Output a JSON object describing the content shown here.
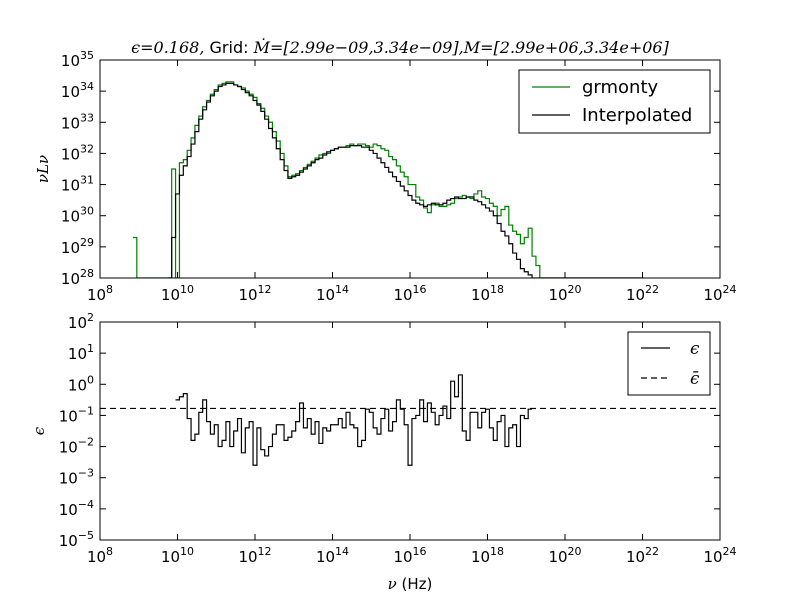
{
  "figure": {
    "title_prefix": "ϵ",
    "title_eq": "=0.168, ",
    "title_grid": "Grid: ",
    "title_mdot": "Ṁ",
    "title_mdot_range": "=[2.99e−09,3.34e−09],",
    "title_m": "M",
    "title_m_range": "=[2.99e+06,3.34e+06]"
  },
  "chart_data": [
    {
      "type": "line",
      "step": true,
      "yscale": "log",
      "xscale": "log",
      "ylabel": "νLν",
      "xlim": [
        100000000.0,
        1e+24
      ],
      "ylim": [
        1e+28,
        1e+35
      ],
      "x_tick_exponents": [
        8,
        10,
        12,
        14,
        16,
        18,
        20,
        22,
        24
      ],
      "y_tick_exponents": [
        28,
        29,
        30,
        31,
        32,
        33,
        34,
        35
      ],
      "legend_position": "top-right",
      "legend": [
        "grmonty",
        "Interpolated"
      ],
      "colors": {
        "grmonty": "#008000",
        "Interpolated": "#000000"
      },
      "series": [
        {
          "name": "grmonty",
          "x_log": [
            8.9,
            9.0,
            9.1,
            9.2,
            9.3,
            9.4,
            9.5,
            9.6,
            9.7,
            9.8,
            9.9,
            10.0,
            10.1,
            10.2,
            10.3,
            10.4,
            10.5,
            10.6,
            10.7,
            10.8,
            10.9,
            11.0,
            11.1,
            11.2,
            11.3,
            11.4,
            11.5,
            11.6,
            11.7,
            11.8,
            11.9,
            12.0,
            12.1,
            12.2,
            12.3,
            12.4,
            12.5,
            12.6,
            12.7,
            12.8,
            12.9,
            13.0,
            13.1,
            13.2,
            13.3,
            13.4,
            13.5,
            13.6,
            13.7,
            13.8,
            13.9,
            14.0,
            14.1,
            14.2,
            14.3,
            14.4,
            14.5,
            14.6,
            14.7,
            14.8,
            14.9,
            15.0,
            15.1,
            15.2,
            15.3,
            15.4,
            15.5,
            15.6,
            15.7,
            15.8,
            15.9,
            16.0,
            16.1,
            16.2,
            16.3,
            16.4,
            16.5,
            16.6,
            16.7,
            16.8,
            16.9,
            17.0,
            17.1,
            17.2,
            17.3,
            17.4,
            17.5,
            17.6,
            17.7,
            17.8,
            17.9,
            18.0,
            18.1,
            18.2,
            18.3,
            18.4,
            18.5,
            18.6,
            18.7,
            18.8,
            18.9,
            19.0,
            19.1,
            19.2,
            19.3,
            19.4,
            19.5,
            19.6,
            19.7,
            19.8,
            19.9,
            20.0,
            20.1,
            20.2,
            20.3,
            20.4,
            20.5,
            20.6,
            20.7,
            20.8,
            20.9,
            21.0,
            21.1,
            21.2,
            21.3,
            21.4,
            21.5,
            21.6,
            21.7,
            21.8,
            21.9,
            22.0
          ],
          "y_log": [
            29.3,
            28,
            28,
            28,
            28,
            28,
            28,
            28,
            28,
            28,
            31.5,
            28,
            31.7,
            31.8,
            32.1,
            32.5,
            32.9,
            33.2,
            33.5,
            33.7,
            33.9,
            34.05,
            34.2,
            34.25,
            34.3,
            34.3,
            34.2,
            34.15,
            34.1,
            34.0,
            33.9,
            33.8,
            33.6,
            33.45,
            33.2,
            33.0,
            32.7,
            32.4,
            32.0,
            31.6,
            31.25,
            31.3,
            31.35,
            31.45,
            31.55,
            31.65,
            31.75,
            31.85,
            31.95,
            32.0,
            32.0,
            32.1,
            32.15,
            32.2,
            32.2,
            32.25,
            32.3,
            32.25,
            32.3,
            32.3,
            32.25,
            32.2,
            32.3,
            32.25,
            32.15,
            32.1,
            31.9,
            31.8,
            31.6,
            31.4,
            31.25,
            31.0,
            31.0,
            30.6,
            30.5,
            30.25,
            30.1,
            30.35,
            30.4,
            30.3,
            30.3,
            30.35,
            30.4,
            30.55,
            30.6,
            30.65,
            30.6,
            30.55,
            30.7,
            30.8,
            30.6,
            30.55,
            30.4,
            30.3,
            30.0,
            30.2,
            30.3,
            29.7,
            29.5,
            29.4,
            29.1,
            29.3,
            29.6,
            28.7,
            28.4,
            28,
            28,
            28,
            28,
            28,
            28,
            28,
            28,
            28,
            28,
            28,
            28,
            28,
            28,
            28,
            28,
            28,
            28,
            28,
            28,
            28,
            28,
            28,
            28,
            28,
            28,
            28,
            28,
            28,
            28,
            28,
            28,
            28
          ]
        },
        {
          "name": "Interpolated",
          "x_log": [
            9.8,
            9.9,
            10.0,
            10.1,
            10.2,
            10.3,
            10.4,
            10.5,
            10.6,
            10.7,
            10.8,
            10.9,
            11.0,
            11.1,
            11.2,
            11.3,
            11.4,
            11.5,
            11.6,
            11.7,
            11.8,
            11.9,
            12.0,
            12.1,
            12.2,
            12.3,
            12.4,
            12.5,
            12.6,
            12.7,
            12.8,
            12.9,
            13.0,
            13.1,
            13.2,
            13.3,
            13.4,
            13.5,
            13.6,
            13.7,
            13.8,
            13.9,
            14.0,
            14.1,
            14.2,
            14.3,
            14.4,
            14.5,
            14.6,
            14.7,
            14.8,
            14.9,
            15.0,
            15.1,
            15.2,
            15.3,
            15.4,
            15.5,
            15.6,
            15.7,
            15.8,
            15.9,
            16.0,
            16.1,
            16.2,
            16.3,
            16.4,
            16.5,
            16.6,
            16.7,
            16.8,
            16.9,
            17.0,
            17.1,
            17.2,
            17.3,
            17.4,
            17.5,
            17.6,
            17.7,
            17.8,
            17.9,
            18.0,
            18.1,
            18.2,
            18.3,
            18.4,
            18.5,
            18.6,
            18.7,
            18.8,
            18.9,
            19.0,
            19.1,
            19.2,
            19.3,
            19.4,
            19.5,
            19.6,
            19.7,
            19.8,
            19.9,
            20.0,
            20.1,
            20.2,
            20.3,
            20.4,
            20.5,
            20.6,
            20.7,
            20.8,
            20.9,
            21.0,
            21.1,
            21.2,
            21.3,
            21.4,
            21.5,
            21.6,
            21.7,
            21.8,
            21.9
          ],
          "y_log": [
            28,
            29.3,
            30.7,
            31.3,
            31.6,
            31.9,
            32.3,
            32.7,
            33.1,
            33.4,
            33.65,
            33.85,
            34.0,
            34.15,
            34.2,
            34.25,
            34.25,
            34.2,
            34.15,
            34.05,
            33.95,
            33.85,
            33.7,
            33.55,
            33.35,
            33.1,
            32.8,
            32.5,
            32.15,
            31.8,
            31.45,
            31.2,
            31.25,
            31.3,
            31.4,
            31.5,
            31.6,
            31.7,
            31.8,
            31.85,
            31.95,
            32.05,
            32.1,
            32.15,
            32.2,
            32.2,
            32.2,
            32.25,
            32.25,
            32.25,
            32.2,
            32.2,
            32.1,
            32.0,
            31.85,
            31.7,
            31.55,
            31.4,
            31.25,
            31.1,
            30.95,
            30.8,
            30.65,
            30.5,
            30.4,
            30.35,
            30.3,
            30.35,
            30.4,
            30.35,
            30.35,
            30.4,
            30.5,
            30.55,
            30.6,
            30.55,
            30.55,
            30.6,
            30.6,
            30.5,
            30.45,
            30.35,
            30.25,
            30.15,
            30.0,
            29.75,
            29.5,
            29.35,
            29.1,
            28.8,
            28.6,
            28.3,
            28.2,
            28.1,
            28.0,
            28,
            28,
            28,
            28,
            28,
            28,
            28,
            28,
            28,
            28,
            28,
            28,
            28,
            28,
            28,
            28,
            28,
            28,
            28,
            28,
            28,
            28,
            28,
            28,
            28,
            28,
            28,
            28,
            28,
            28,
            28
          ]
        }
      ]
    },
    {
      "type": "line",
      "step": true,
      "yscale": "log",
      "xscale": "log",
      "xlabel": "ν (Hz)",
      "ylabel": "ϵ",
      "xlim": [
        100000000.0,
        1e+24
      ],
      "ylim": [
        1e-05,
        100.0
      ],
      "x_tick_exponents": [
        8,
        10,
        12,
        14,
        16,
        18,
        20,
        22,
        24
      ],
      "y_tick_exponents": [
        -5,
        -4,
        -3,
        -2,
        -1,
        0,
        1,
        2
      ],
      "legend_position": "top-right",
      "legend": [
        "ϵ",
        "ϵ̄"
      ],
      "mean_epsilon": 0.168,
      "series": [
        {
          "name": "ϵ",
          "x_log": [
            10.0,
            10.1,
            10.2,
            10.3,
            10.4,
            10.5,
            10.6,
            10.7,
            10.8,
            10.9,
            11.0,
            11.1,
            11.2,
            11.3,
            11.4,
            11.5,
            11.6,
            11.7,
            11.8,
            11.9,
            12.0,
            12.1,
            12.2,
            12.3,
            12.4,
            12.5,
            12.6,
            12.7,
            12.8,
            12.9,
            13.0,
            13.1,
            13.2,
            13.3,
            13.4,
            13.5,
            13.6,
            13.7,
            13.8,
            13.9,
            14.0,
            14.1,
            14.2,
            14.3,
            14.4,
            14.5,
            14.6,
            14.7,
            14.8,
            14.9,
            15.0,
            15.1,
            15.2,
            15.3,
            15.4,
            15.5,
            15.6,
            15.7,
            15.8,
            15.9,
            16.0,
            16.1,
            16.2,
            16.3,
            16.4,
            16.5,
            16.6,
            16.7,
            16.8,
            16.9,
            17.0,
            17.1,
            17.2,
            17.3,
            17.4,
            17.5,
            17.6,
            17.7,
            17.8,
            17.9,
            18.0,
            18.1,
            18.2,
            18.3,
            18.4,
            18.5,
            18.6,
            18.7,
            18.8,
            18.9,
            19.0,
            19.1
          ],
          "y_log": [
            -0.5,
            -0.4,
            -0.3,
            -1.1,
            -1.8,
            -1.6,
            -0.9,
            -0.5,
            -1.2,
            -1.6,
            -1.3,
            -2.0,
            -1.8,
            -1.2,
            -2.0,
            -1.5,
            -1.1,
            -2.2,
            -1.4,
            -1.2,
            -2.6,
            -1.4,
            -2.1,
            -2.3,
            -2.0,
            -1.6,
            -1.3,
            -1.3,
            -1.8,
            -1.7,
            -1.5,
            -1.2,
            -0.6,
            -1.4,
            -1.1,
            -1.6,
            -1.2,
            -1.9,
            -1.4,
            -1.5,
            -1.3,
            -1.3,
            -1.1,
            -1.4,
            -0.9,
            -1.3,
            -1.4,
            -2.0,
            -1.8,
            -0.8,
            -0.9,
            -1.4,
            -1.6,
            -1.1,
            -0.8,
            -1.5,
            -1.2,
            -0.5,
            -0.8,
            -1.3,
            -2.6,
            -1.1,
            -1.0,
            -0.5,
            -1.2,
            -0.6,
            -0.9,
            -1.3,
            -1.0,
            -0.7,
            -1.1,
            0.1,
            -0.4,
            0.3,
            -1.5,
            -1.8,
            -0.9,
            -0.9,
            -1.4,
            -0.9,
            -0.8,
            -1.4,
            -1.8,
            -1.2,
            -1.0,
            -2.0,
            -1.4,
            -1.3,
            -2.0,
            -1.0,
            -1.1,
            -0.8
          ]
        },
        {
          "name": "ϵ̄",
          "x_log": [
            8,
            24
          ],
          "y_log": [
            -0.775,
            -0.775
          ]
        }
      ]
    }
  ]
}
